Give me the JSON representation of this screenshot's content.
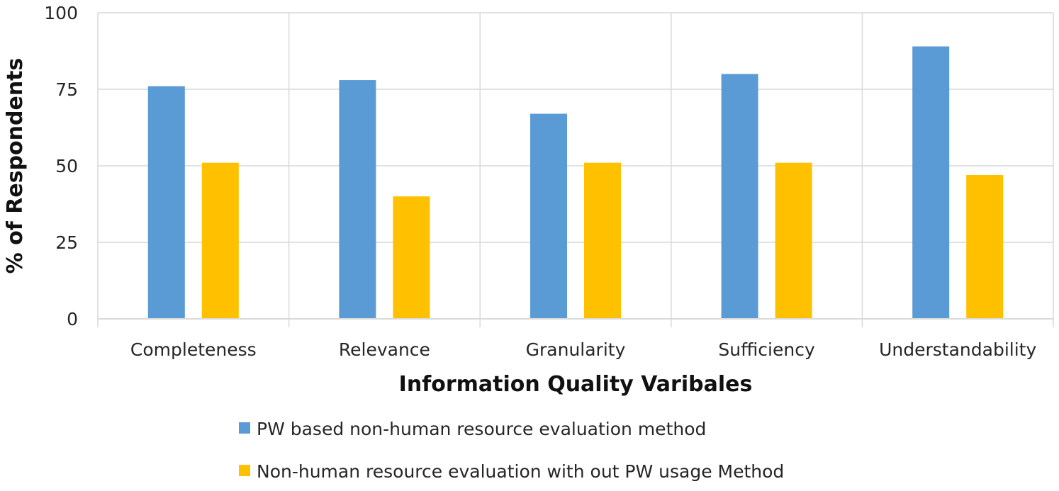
{
  "chart_data": {
    "type": "bar",
    "title": "",
    "xlabel": "Information Quality Varibales",
    "ylabel": "% of Respondents",
    "categories": [
      "Completeness",
      "Relevance",
      "Granularity",
      "Sufficiency",
      "Understandability"
    ],
    "series": [
      {
        "name": "PW based non-human resource evaluation method",
        "color": "#5B9BD5",
        "values": [
          76,
          78,
          67,
          80,
          89
        ]
      },
      {
        "name": "Non-human resource evaluation with out PW usage Method",
        "color": "#FFC000",
        "values": [
          51,
          40,
          51,
          51,
          47
        ]
      }
    ],
    "ylim": [
      0,
      100
    ],
    "yticks": [
      0,
      25,
      50,
      75,
      100
    ],
    "grid": true,
    "legend_position": "bottom"
  }
}
